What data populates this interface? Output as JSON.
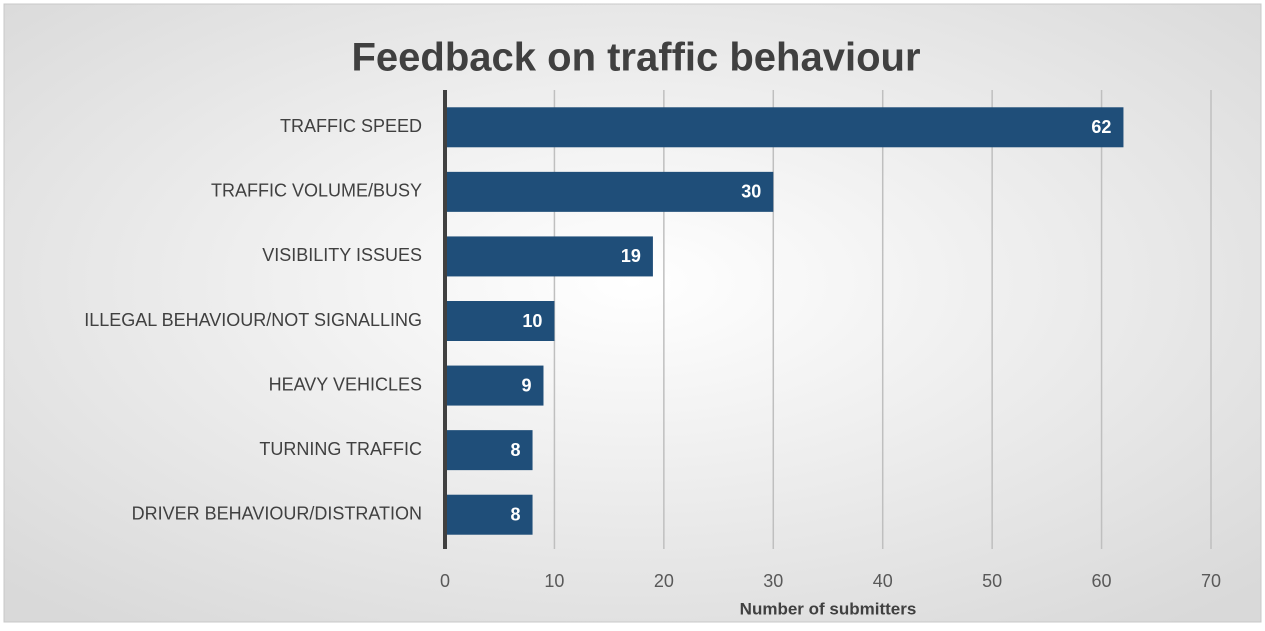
{
  "chart_data": {
    "type": "bar",
    "title": "Feedback on traffic behaviour",
    "x_label": "Number of submitters",
    "categories": [
      "TRAFFIC SPEED",
      "TRAFFIC VOLUME/BUSY",
      "VISIBILITY ISSUES",
      "ILLEGAL BEHAVIOUR/NOT SIGNALLING",
      "HEAVY VEHICLES",
      "TURNING TRAFFIC",
      "DRIVER BEHAVIOUR/DISTRATION"
    ],
    "values": [
      62,
      30,
      19,
      10,
      9,
      8,
      8
    ],
    "color": "#1f4e79",
    "xlim": [
      0,
      70
    ],
    "xticks": [
      0,
      10,
      20,
      30,
      40,
      50,
      60,
      70
    ],
    "grid": true
  }
}
